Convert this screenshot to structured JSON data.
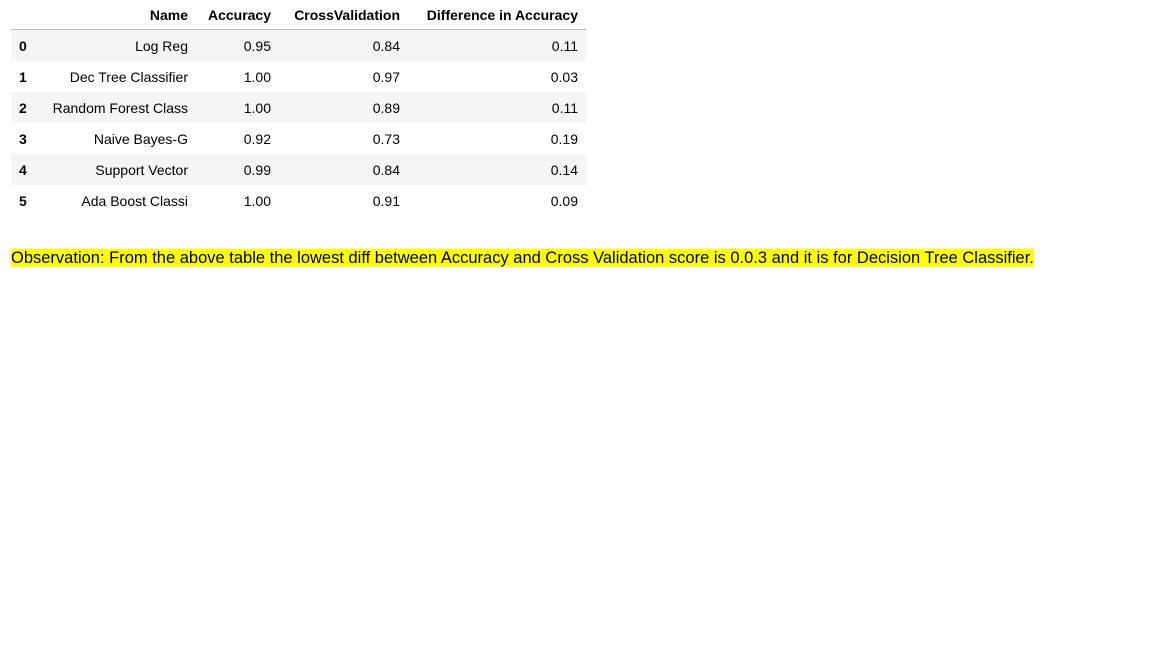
{
  "table": {
    "columns": [
      "",
      "Name",
      "Accuracy",
      "CrossValidation",
      "Difference in Accuracy"
    ],
    "rows": [
      {
        "index": "0",
        "name": "Log Reg",
        "accuracy": "0.95",
        "cross_validation": "0.84",
        "difference": "0.11"
      },
      {
        "index": "1",
        "name": "Dec Tree Classifier",
        "accuracy": "1.00",
        "cross_validation": "0.97",
        "difference": "0.03"
      },
      {
        "index": "2",
        "name": "Random Forest Class",
        "accuracy": "1.00",
        "cross_validation": "0.89",
        "difference": "0.11"
      },
      {
        "index": "3",
        "name": "Naive Bayes-G",
        "accuracy": "0.92",
        "cross_validation": "0.73",
        "difference": "0.19"
      },
      {
        "index": "4",
        "name": "Support Vector",
        "accuracy": "0.99",
        "cross_validation": "0.84",
        "difference": "0.14"
      },
      {
        "index": "5",
        "name": "Ada Boost Classi",
        "accuracy": "1.00",
        "cross_validation": "0.91",
        "difference": "0.09"
      }
    ]
  },
  "observation": {
    "text": "Observation: From the above table the lowest diff between Accuracy and Cross Validation score is 0.0.3 and it is for Decision Tree Classifier.",
    "highlight_color": "#ffff00"
  }
}
